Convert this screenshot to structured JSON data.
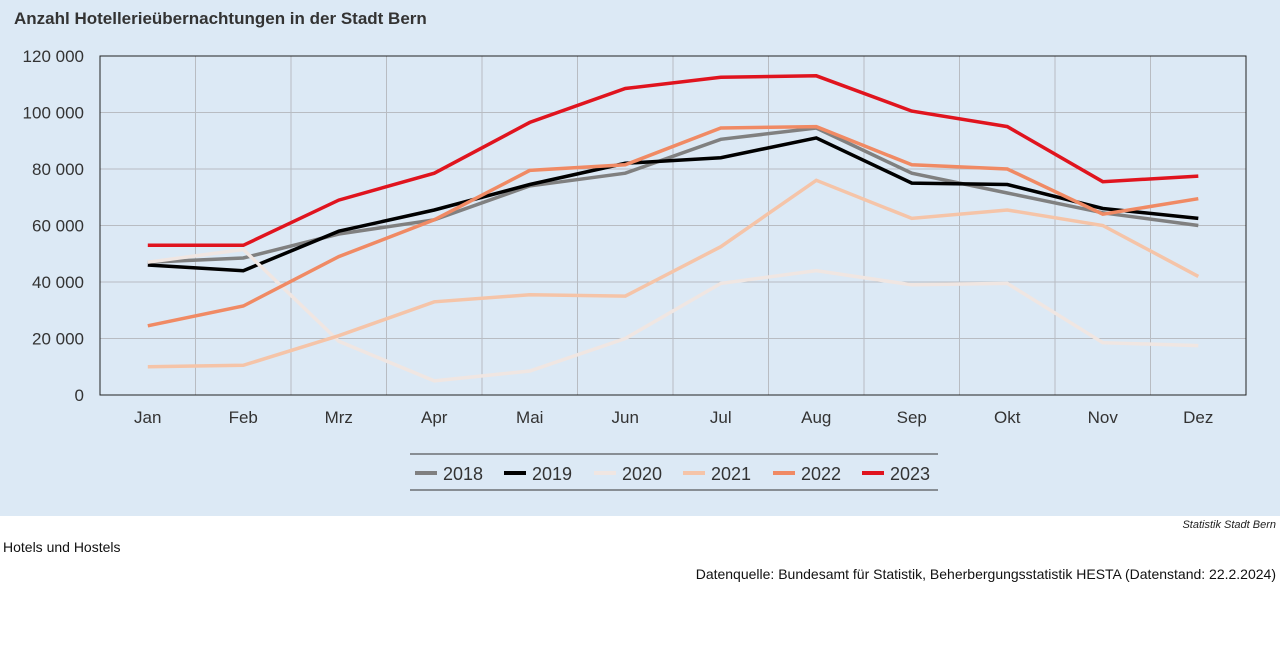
{
  "chart_data": {
    "type": "line",
    "title": "Anzahl Hotellerieübernachtungen in der Stadt Bern",
    "categories": [
      "Jan",
      "Feb",
      "Mrz",
      "Apr",
      "Mai",
      "Jun",
      "Jul",
      "Aug",
      "Sep",
      "Okt",
      "Nov",
      "Dez"
    ],
    "ylim": [
      0,
      120000
    ],
    "yticks": [
      0,
      20000,
      40000,
      60000,
      80000,
      100000,
      120000
    ],
    "ytick_labels": [
      "0",
      "20 000",
      "40 000",
      "60 000",
      "80 000",
      "100 000",
      "120 000"
    ],
    "grid": true,
    "legend_position": "bottom-center",
    "series": [
      {
        "name": "2018",
        "color": "#808080",
        "values": [
          47000,
          48500,
          57000,
          62000,
          74000,
          78500,
          90500,
          94500,
          78500,
          71500,
          64500,
          60000
        ]
      },
      {
        "name": "2019",
        "color": "#000000",
        "values": [
          46000,
          44000,
          58000,
          65500,
          74500,
          82000,
          84000,
          91000,
          75000,
          74500,
          66000,
          62500
        ]
      },
      {
        "name": "2020",
        "color": "#f0e6e2",
        "values": [
          47000,
          51500,
          19000,
          5000,
          8500,
          20000,
          39500,
          44000,
          39000,
          39500,
          18500,
          17500
        ]
      },
      {
        "name": "2021",
        "color": "#f5c4a8",
        "values": [
          10000,
          10500,
          21000,
          33000,
          35500,
          35000,
          52500,
          76000,
          62500,
          65500,
          60000,
          42000
        ]
      },
      {
        "name": "2022",
        "color": "#f08a64",
        "values": [
          24500,
          31500,
          49000,
          62000,
          79500,
          81500,
          94500,
          95000,
          81500,
          80000,
          64000,
          69500
        ]
      },
      {
        "name": "2023",
        "color": "#e0141e",
        "values": [
          53000,
          53000,
          69000,
          78500,
          96500,
          108500,
          112500,
          113000,
          100500,
          95000,
          75500,
          77500
        ]
      }
    ]
  },
  "footer": {
    "credit": "Statistik Stadt Bern",
    "note": "Hotels und Hostels",
    "source": "Datenquelle: Bundesamt für Statistik, Beherbergungsstatistik HESTA (Datenstand: 22.2.2024)"
  }
}
